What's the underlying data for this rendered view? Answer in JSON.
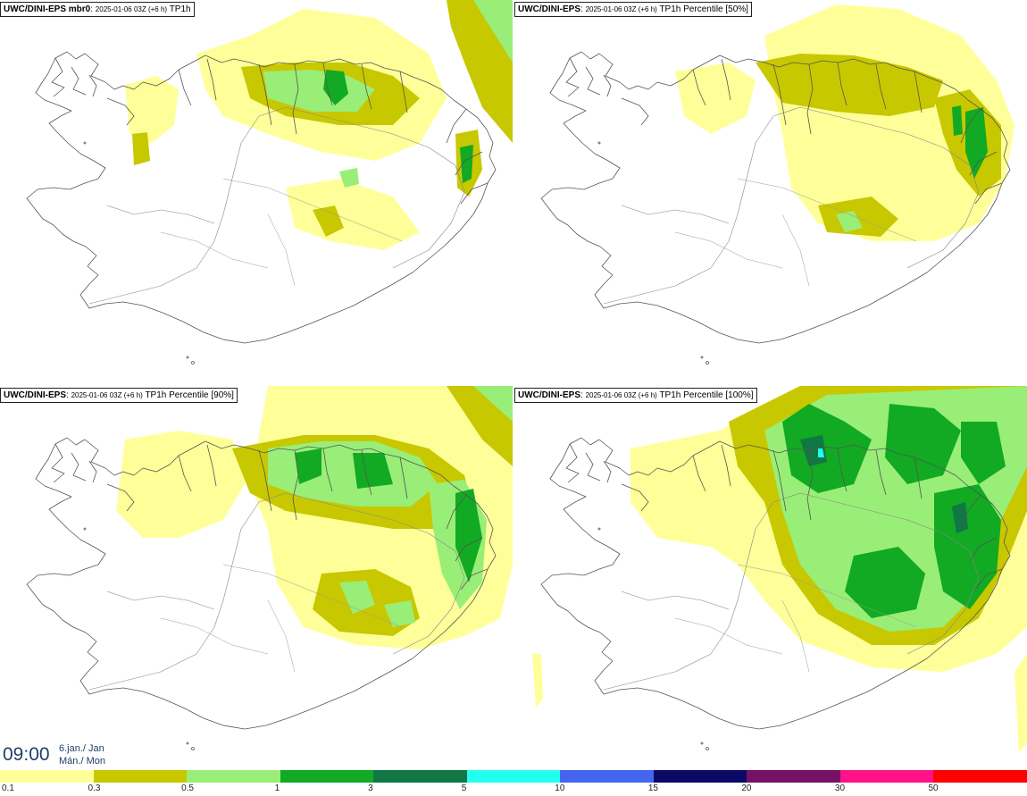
{
  "panels": [
    {
      "model": "UWC/DINI-EPS mbr0",
      "meta": "2025-01-06 03Z (+6 h)",
      "product": "TP1h"
    },
    {
      "model": "UWC/DINI-EPS",
      "meta": "2025-01-06 03Z (+6 h)",
      "product": "TP1h Percentile [50%]"
    },
    {
      "model": "UWC/DINI-EPS",
      "meta": "2025-01-06 03Z (+6 h)",
      "product": "TP1h Percentile [90%]"
    },
    {
      "model": "UWC/DINI-EPS",
      "meta": "2025-01-06 03Z (+6 h)",
      "product": "TP1h Percentile [100%]"
    }
  ],
  "valid_time": {
    "time": "09:00",
    "date_line1": "6.jan./ Jan",
    "date_line2": "Mán./ Mon"
  },
  "legend": {
    "ticks": [
      "0.1",
      "0.3",
      "0.5",
      "1",
      "3",
      "5",
      "10",
      "15",
      "20",
      "30",
      "50"
    ],
    "colors": [
      "#ffff99",
      "#c8c800",
      "#99ee77",
      "#11aa22",
      "#117744",
      "#22ffee",
      "#4466ee",
      "#0a0a66",
      "#771166",
      "#ff1188",
      "#ff0000"
    ]
  },
  "colors": {
    "coast": "#555555",
    "background": "#ffffff"
  }
}
